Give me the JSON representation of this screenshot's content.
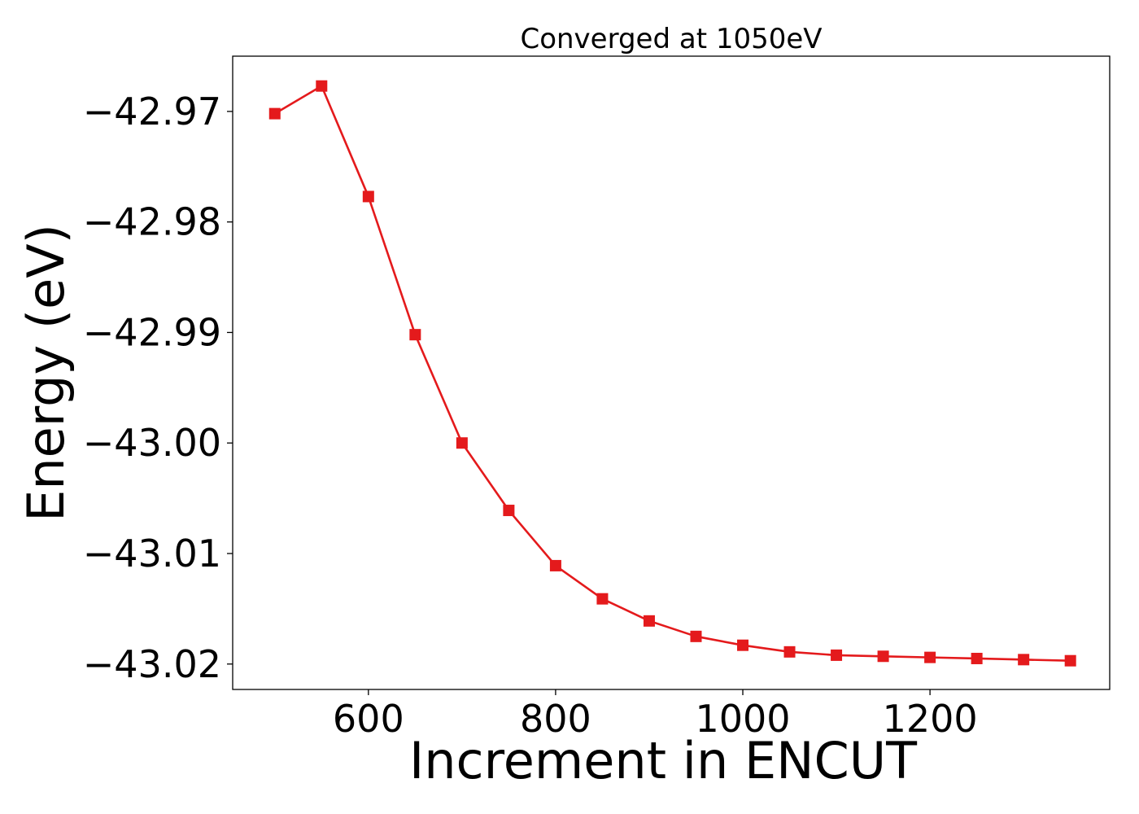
{
  "chart_data": {
    "type": "line",
    "title": "Converged at 1050eV",
    "xlabel": "Increment in ENCUT",
    "ylabel": "Energy (eV)",
    "x": [
      500,
      550,
      600,
      650,
      700,
      750,
      800,
      850,
      900,
      950,
      1000,
      1050,
      1100,
      1150,
      1200,
      1250,
      1300,
      1350
    ],
    "series": [
      {
        "values": [
          -42.9702,
          -42.9677,
          -42.9777,
          -42.9902,
          -43.0,
          -43.0061,
          -43.0111,
          -43.0141,
          -43.0161,
          -43.0175,
          -43.0183,
          -43.0189,
          -43.0192,
          -43.0193,
          -43.0194,
          -43.0195,
          -43.0196,
          -43.0197
        ],
        "color": "#e41a1c",
        "marker": "square"
      }
    ],
    "xlim": [
      455,
      1392
    ],
    "ylim": [
      -43.0223,
      -42.965
    ],
    "xticks": [
      600,
      800,
      1000,
      1200
    ],
    "xtick_labels": [
      "600",
      "800",
      "1000",
      "1200"
    ],
    "yticks": [
      -42.97,
      -42.98,
      -42.99,
      -43.0,
      -43.01,
      -43.02
    ],
    "ytick_labels": [
      "−42.97",
      "−42.98",
      "−42.99",
      "−43.00",
      "−43.01",
      "−43.02"
    ],
    "grid": false,
    "legend": "none"
  }
}
